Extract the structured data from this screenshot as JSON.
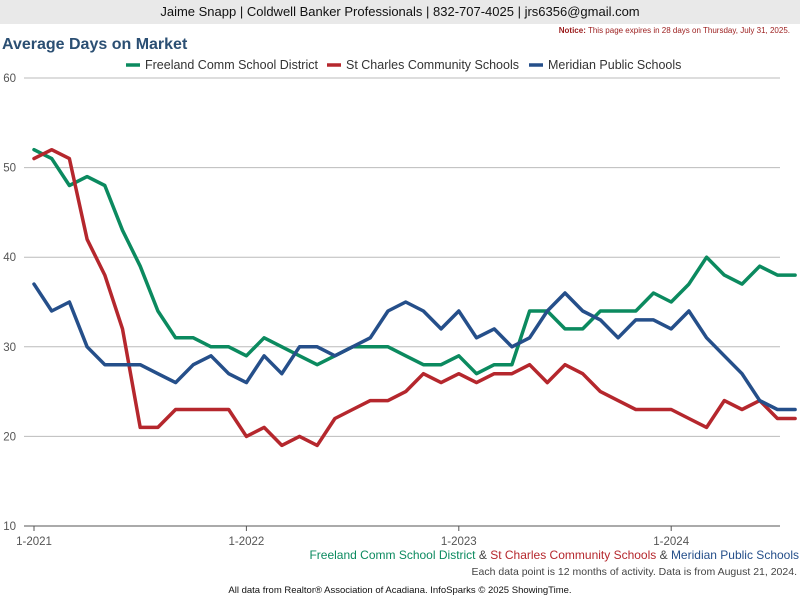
{
  "header": {
    "contact": "Jaime Snapp | Coldwell Banker Professionals | 832-707-4025 | jrs6356@gmail.com",
    "notice_label": "Notice:",
    "notice_text": "This page expires in 28 days on Thursday, July 31, 2025."
  },
  "footer": {
    "series_1": "Freeland Comm School District",
    "separator_1": " & ",
    "series_2": "St Charles Community Schools",
    "separator_2": " & ",
    "series_3": "Meridian Public Schools",
    "note": "Each data point is 12 months of activity. Data is from August 21, 2024.",
    "source": "All data from Realtor® Association of Acadiana. InfoSparks © 2025 ShowingTime."
  },
  "chart_data": {
    "type": "line",
    "title": "Average Days on Market",
    "xlabel": "",
    "ylabel": "",
    "ylim": [
      10,
      60
    ],
    "yticks": [
      10,
      20,
      30,
      40,
      50,
      60
    ],
    "xticks": [
      "1-2021",
      "1-2022",
      "1-2023",
      "1-2024"
    ],
    "x": [
      "1-2021",
      "2-2021",
      "3-2021",
      "4-2021",
      "5-2021",
      "6-2021",
      "7-2021",
      "8-2021",
      "9-2021",
      "10-2021",
      "11-2021",
      "12-2021",
      "1-2022",
      "2-2022",
      "3-2022",
      "4-2022",
      "5-2022",
      "6-2022",
      "7-2022",
      "8-2022",
      "9-2022",
      "10-2022",
      "11-2022",
      "12-2022",
      "1-2023",
      "2-2023",
      "3-2023",
      "4-2023",
      "5-2023",
      "6-2023",
      "7-2023",
      "8-2023",
      "9-2023",
      "10-2023",
      "11-2023",
      "12-2023",
      "1-2024",
      "2-2024",
      "3-2024",
      "4-2024",
      "5-2024",
      "6-2024",
      "7-2024",
      "8-2024"
    ],
    "grid": true,
    "legend_position": "top",
    "series": [
      {
        "name": "Freeland Comm School District",
        "color": "#0b8a5f",
        "values": [
          52,
          51,
          48,
          49,
          48,
          43,
          39,
          34,
          31,
          31,
          30,
          30,
          29,
          31,
          30,
          29,
          28,
          29,
          30,
          30,
          30,
          29,
          28,
          28,
          29,
          27,
          28,
          28,
          34,
          34,
          32,
          32,
          34,
          34,
          34,
          36,
          35,
          37,
          40,
          38,
          37,
          39,
          38,
          38
        ]
      },
      {
        "name": "St Charles Community Schools",
        "color": "#b5272d",
        "values": [
          51,
          52,
          51,
          42,
          38,
          32,
          21,
          21,
          23,
          23,
          23,
          23,
          20,
          21,
          19,
          20,
          19,
          22,
          23,
          24,
          24,
          25,
          27,
          26,
          27,
          26,
          27,
          27,
          28,
          26,
          28,
          27,
          25,
          24,
          23,
          23,
          23,
          22,
          21,
          24,
          23,
          24,
          22,
          22
        ]
      },
      {
        "name": "Meridian Public Schools",
        "color": "#254f8a",
        "values": [
          37,
          34,
          35,
          30,
          28,
          28,
          28,
          27,
          26,
          28,
          29,
          27,
          26,
          29,
          27,
          30,
          30,
          29,
          30,
          31,
          34,
          35,
          34,
          32,
          34,
          31,
          32,
          30,
          31,
          34,
          36,
          34,
          33,
          31,
          33,
          33,
          32,
          34,
          31,
          29,
          27,
          24,
          23,
          23
        ]
      }
    ]
  }
}
